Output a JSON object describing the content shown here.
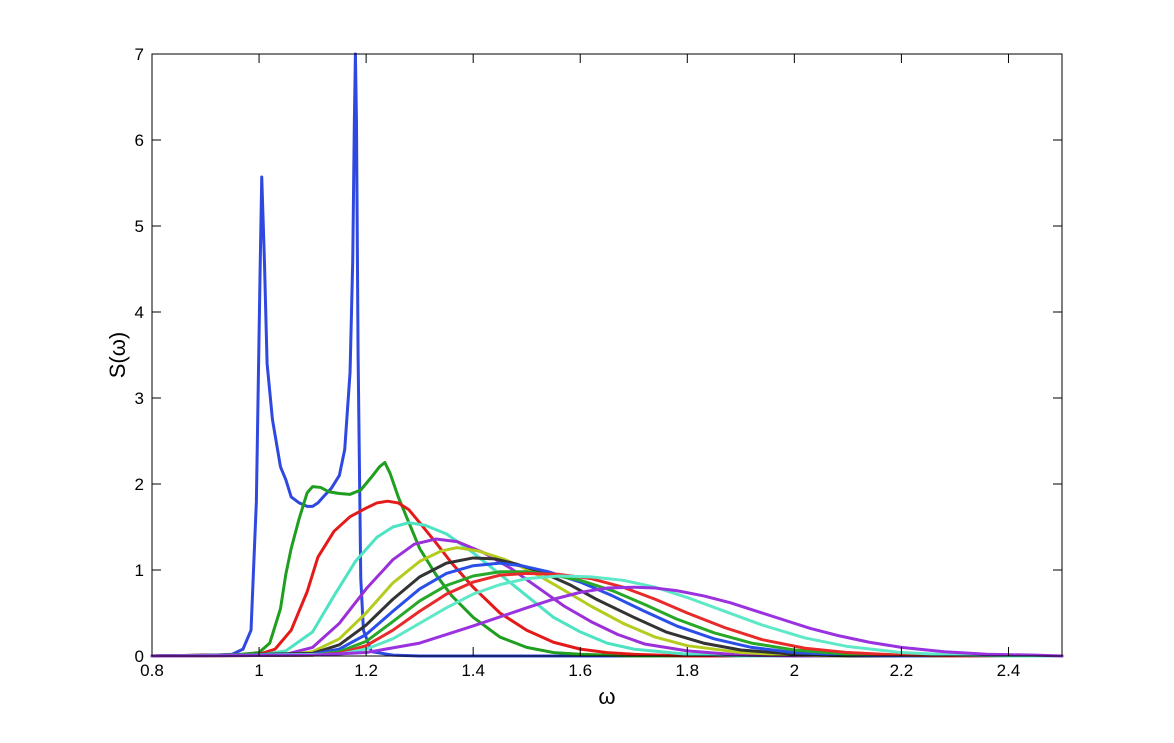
{
  "chart_data": {
    "type": "line",
    "title": "",
    "xlabel": "ω",
    "ylabel": "S(ω)",
    "xlim": [
      0.8,
      2.5
    ],
    "ylim": [
      0,
      7
    ],
    "xticks": [
      0.8,
      1,
      1.2,
      1.4,
      1.6,
      1.8,
      2,
      2.2,
      2.4
    ],
    "xtick_labels": [
      "0.8",
      "1",
      "1.2",
      "1.4",
      "1.6",
      "1.8",
      "2",
      "2.2",
      "2.4"
    ],
    "yticks": [
      0,
      1,
      2,
      3,
      4,
      5,
      6,
      7
    ],
    "ytick_labels": [
      "0",
      "1",
      "2",
      "3",
      "4",
      "5",
      "6",
      "7"
    ],
    "grid": false,
    "legend": "none",
    "series": [
      {
        "color": "#2f48e0",
        "points": [
          [
            0.8,
            0
          ],
          [
            0.9,
            0.003
          ],
          [
            0.95,
            0.02
          ],
          [
            0.97,
            0.08
          ],
          [
            0.985,
            0.3
          ],
          [
            0.995,
            1.8
          ],
          [
            1.002,
            4.5
          ],
          [
            1.005,
            5.57
          ],
          [
            1.01,
            4.6
          ],
          [
            1.015,
            3.4
          ],
          [
            1.025,
            2.75
          ],
          [
            1.04,
            2.2
          ],
          [
            1.05,
            2.05
          ],
          [
            1.06,
            1.85
          ],
          [
            1.075,
            1.78
          ],
          [
            1.09,
            1.74
          ],
          [
            1.1,
            1.74
          ],
          [
            1.11,
            1.78
          ],
          [
            1.12,
            1.85
          ],
          [
            1.135,
            1.95
          ],
          [
            1.15,
            2.1
          ],
          [
            1.16,
            2.4
          ],
          [
            1.17,
            3.3
          ],
          [
            1.175,
            4.6
          ],
          [
            1.178,
            6.2
          ],
          [
            1.18,
            7.0
          ],
          [
            1.182,
            6.2
          ],
          [
            1.185,
            3.5
          ],
          [
            1.19,
            0.9
          ],
          [
            1.195,
            0.3
          ],
          [
            1.21,
            0.05
          ],
          [
            1.25,
            0.01
          ],
          [
            1.3,
            0
          ],
          [
            2.5,
            0
          ]
        ]
      },
      {
        "color": "#1f9e1f",
        "points": [
          [
            0.8,
            0
          ],
          [
            0.95,
            0.01
          ],
          [
            1.0,
            0.04
          ],
          [
            1.02,
            0.15
          ],
          [
            1.04,
            0.55
          ],
          [
            1.05,
            0.95
          ],
          [
            1.06,
            1.25
          ],
          [
            1.075,
            1.6
          ],
          [
            1.09,
            1.9
          ],
          [
            1.1,
            1.97
          ],
          [
            1.115,
            1.96
          ],
          [
            1.13,
            1.91
          ],
          [
            1.15,
            1.89
          ],
          [
            1.17,
            1.88
          ],
          [
            1.19,
            1.93
          ],
          [
            1.21,
            2.08
          ],
          [
            1.225,
            2.2
          ],
          [
            1.235,
            2.25
          ],
          [
            1.245,
            2.12
          ],
          [
            1.26,
            1.85
          ],
          [
            1.28,
            1.55
          ],
          [
            1.3,
            1.25
          ],
          [
            1.33,
            0.95
          ],
          [
            1.36,
            0.7
          ],
          [
            1.4,
            0.45
          ],
          [
            1.45,
            0.22
          ],
          [
            1.5,
            0.1
          ],
          [
            1.55,
            0.04
          ],
          [
            1.6,
            0.02
          ],
          [
            1.7,
            0
          ],
          [
            2.5,
            0
          ]
        ]
      },
      {
        "color": "#e41a1a",
        "points": [
          [
            0.8,
            0
          ],
          [
            1.0,
            0.02
          ],
          [
            1.03,
            0.08
          ],
          [
            1.06,
            0.3
          ],
          [
            1.09,
            0.75
          ],
          [
            1.11,
            1.15
          ],
          [
            1.14,
            1.45
          ],
          [
            1.17,
            1.62
          ],
          [
            1.2,
            1.72
          ],
          [
            1.22,
            1.78
          ],
          [
            1.24,
            1.8
          ],
          [
            1.26,
            1.78
          ],
          [
            1.28,
            1.7
          ],
          [
            1.3,
            1.55
          ],
          [
            1.33,
            1.32
          ],
          [
            1.36,
            1.08
          ],
          [
            1.4,
            0.8
          ],
          [
            1.45,
            0.5
          ],
          [
            1.5,
            0.3
          ],
          [
            1.55,
            0.16
          ],
          [
            1.6,
            0.08
          ],
          [
            1.65,
            0.04
          ],
          [
            1.7,
            0.02
          ],
          [
            1.8,
            0
          ],
          [
            2.5,
            0
          ]
        ]
      },
      {
        "color": "#4de3c3",
        "points": [
          [
            0.8,
            0
          ],
          [
            1.0,
            0.01
          ],
          [
            1.05,
            0.06
          ],
          [
            1.1,
            0.28
          ],
          [
            1.14,
            0.7
          ],
          [
            1.18,
            1.1
          ],
          [
            1.22,
            1.38
          ],
          [
            1.25,
            1.5
          ],
          [
            1.28,
            1.55
          ],
          [
            1.31,
            1.52
          ],
          [
            1.35,
            1.42
          ],
          [
            1.4,
            1.2
          ],
          [
            1.45,
            0.95
          ],
          [
            1.5,
            0.7
          ],
          [
            1.55,
            0.45
          ],
          [
            1.6,
            0.28
          ],
          [
            1.65,
            0.15
          ],
          [
            1.7,
            0.08
          ],
          [
            1.8,
            0.02
          ],
          [
            1.9,
            0
          ],
          [
            2.5,
            0
          ]
        ]
      },
      {
        "color": "#9b30d8",
        "points": [
          [
            0.8,
            0
          ],
          [
            1.05,
            0.02
          ],
          [
            1.1,
            0.1
          ],
          [
            1.15,
            0.38
          ],
          [
            1.2,
            0.78
          ],
          [
            1.25,
            1.12
          ],
          [
            1.29,
            1.3
          ],
          [
            1.33,
            1.36
          ],
          [
            1.37,
            1.33
          ],
          [
            1.42,
            1.2
          ],
          [
            1.47,
            1.02
          ],
          [
            1.52,
            0.8
          ],
          [
            1.57,
            0.58
          ],
          [
            1.62,
            0.4
          ],
          [
            1.67,
            0.25
          ],
          [
            1.72,
            0.14
          ],
          [
            1.8,
            0.06
          ],
          [
            1.9,
            0.01
          ],
          [
            2.0,
            0
          ],
          [
            2.5,
            0
          ]
        ]
      },
      {
        "color": "#b5cc1f",
        "points": [
          [
            0.8,
            0
          ],
          [
            1.05,
            0.01
          ],
          [
            1.1,
            0.05
          ],
          [
            1.15,
            0.2
          ],
          [
            1.2,
            0.5
          ],
          [
            1.25,
            0.85
          ],
          [
            1.3,
            1.1
          ],
          [
            1.34,
            1.22
          ],
          [
            1.37,
            1.26
          ],
          [
            1.41,
            1.22
          ],
          [
            1.46,
            1.12
          ],
          [
            1.51,
            0.98
          ],
          [
            1.56,
            0.8
          ],
          [
            1.62,
            0.58
          ],
          [
            1.68,
            0.38
          ],
          [
            1.74,
            0.22
          ],
          [
            1.8,
            0.12
          ],
          [
            1.9,
            0.04
          ],
          [
            2.0,
            0.01
          ],
          [
            2.1,
            0
          ],
          [
            2.5,
            0
          ]
        ]
      },
      {
        "color": "#333333",
        "points": [
          [
            0.8,
            0
          ],
          [
            1.1,
            0.03
          ],
          [
            1.15,
            0.13
          ],
          [
            1.2,
            0.36
          ],
          [
            1.25,
            0.66
          ],
          [
            1.3,
            0.92
          ],
          [
            1.35,
            1.08
          ],
          [
            1.4,
            1.14
          ],
          [
            1.44,
            1.13
          ],
          [
            1.48,
            1.07
          ],
          [
            1.53,
            0.97
          ],
          [
            1.58,
            0.83
          ],
          [
            1.63,
            0.66
          ],
          [
            1.7,
            0.45
          ],
          [
            1.76,
            0.28
          ],
          [
            1.83,
            0.15
          ],
          [
            1.9,
            0.07
          ],
          [
            2.0,
            0.02
          ],
          [
            2.1,
            0
          ],
          [
            2.5,
            0
          ]
        ]
      },
      {
        "color": "#2a4fe8",
        "points": [
          [
            0.8,
            0
          ],
          [
            1.1,
            0.02
          ],
          [
            1.15,
            0.08
          ],
          [
            1.2,
            0.25
          ],
          [
            1.25,
            0.52
          ],
          [
            1.3,
            0.78
          ],
          [
            1.35,
            0.96
          ],
          [
            1.4,
            1.05
          ],
          [
            1.45,
            1.08
          ],
          [
            1.49,
            1.05
          ],
          [
            1.54,
            0.98
          ],
          [
            1.6,
            0.86
          ],
          [
            1.66,
            0.7
          ],
          [
            1.72,
            0.52
          ],
          [
            1.78,
            0.35
          ],
          [
            1.85,
            0.2
          ],
          [
            1.92,
            0.1
          ],
          [
            2.0,
            0.04
          ],
          [
            2.1,
            0.01
          ],
          [
            2.2,
            0
          ],
          [
            2.5,
            0
          ]
        ]
      },
      {
        "color": "#28a828",
        "points": [
          [
            0.8,
            0
          ],
          [
            1.1,
            0.01
          ],
          [
            1.15,
            0.05
          ],
          [
            1.2,
            0.17
          ],
          [
            1.25,
            0.4
          ],
          [
            1.3,
            0.64
          ],
          [
            1.35,
            0.82
          ],
          [
            1.4,
            0.93
          ],
          [
            1.45,
            0.98
          ],
          [
            1.5,
            0.98
          ],
          [
            1.55,
            0.94
          ],
          [
            1.6,
            0.88
          ],
          [
            1.66,
            0.76
          ],
          [
            1.72,
            0.6
          ],
          [
            1.78,
            0.43
          ],
          [
            1.85,
            0.27
          ],
          [
            1.92,
            0.15
          ],
          [
            2.0,
            0.07
          ],
          [
            2.1,
            0.02
          ],
          [
            2.2,
            0.01
          ],
          [
            2.3,
            0
          ],
          [
            2.5,
            0
          ]
        ]
      },
      {
        "color": "#e82a2a",
        "points": [
          [
            0.8,
            0
          ],
          [
            1.1,
            0.01
          ],
          [
            1.15,
            0.03
          ],
          [
            1.2,
            0.12
          ],
          [
            1.25,
            0.3
          ],
          [
            1.3,
            0.52
          ],
          [
            1.35,
            0.72
          ],
          [
            1.4,
            0.86
          ],
          [
            1.45,
            0.94
          ],
          [
            1.5,
            0.96
          ],
          [
            1.56,
            0.95
          ],
          [
            1.62,
            0.9
          ],
          [
            1.68,
            0.8
          ],
          [
            1.74,
            0.66
          ],
          [
            1.8,
            0.5
          ],
          [
            1.87,
            0.33
          ],
          [
            1.94,
            0.19
          ],
          [
            2.02,
            0.09
          ],
          [
            2.1,
            0.04
          ],
          [
            2.2,
            0.01
          ],
          [
            2.3,
            0
          ],
          [
            2.5,
            0
          ]
        ]
      },
      {
        "color": "#5ee8c8",
        "points": [
          [
            0.8,
            0
          ],
          [
            1.15,
            0.02
          ],
          [
            1.2,
            0.08
          ],
          [
            1.25,
            0.2
          ],
          [
            1.3,
            0.38
          ],
          [
            1.35,
            0.56
          ],
          [
            1.4,
            0.72
          ],
          [
            1.45,
            0.83
          ],
          [
            1.5,
            0.9
          ],
          [
            1.56,
            0.93
          ],
          [
            1.62,
            0.92
          ],
          [
            1.68,
            0.88
          ],
          [
            1.74,
            0.8
          ],
          [
            1.8,
            0.68
          ],
          [
            1.87,
            0.52
          ],
          [
            1.94,
            0.36
          ],
          [
            2.02,
            0.21
          ],
          [
            2.1,
            0.11
          ],
          [
            2.2,
            0.04
          ],
          [
            2.3,
            0.01
          ],
          [
            2.4,
            0
          ],
          [
            2.5,
            0
          ]
        ]
      },
      {
        "color": "#9a32e0",
        "points": [
          [
            0.8,
            0
          ],
          [
            1.1,
            0.01
          ],
          [
            1.2,
            0.04
          ],
          [
            1.3,
            0.15
          ],
          [
            1.4,
            0.35
          ],
          [
            1.5,
            0.56
          ],
          [
            1.55,
            0.66
          ],
          [
            1.6,
            0.74
          ],
          [
            1.65,
            0.79
          ],
          [
            1.7,
            0.8
          ],
          [
            1.74,
            0.79
          ],
          [
            1.78,
            0.76
          ],
          [
            1.83,
            0.7
          ],
          [
            1.88,
            0.62
          ],
          [
            1.93,
            0.52
          ],
          [
            1.98,
            0.42
          ],
          [
            2.03,
            0.32
          ],
          [
            2.08,
            0.24
          ],
          [
            2.14,
            0.16
          ],
          [
            2.2,
            0.1
          ],
          [
            2.28,
            0.05
          ],
          [
            2.36,
            0.02
          ],
          [
            2.45,
            0.01
          ],
          [
            2.5,
            0
          ]
        ]
      }
    ]
  }
}
